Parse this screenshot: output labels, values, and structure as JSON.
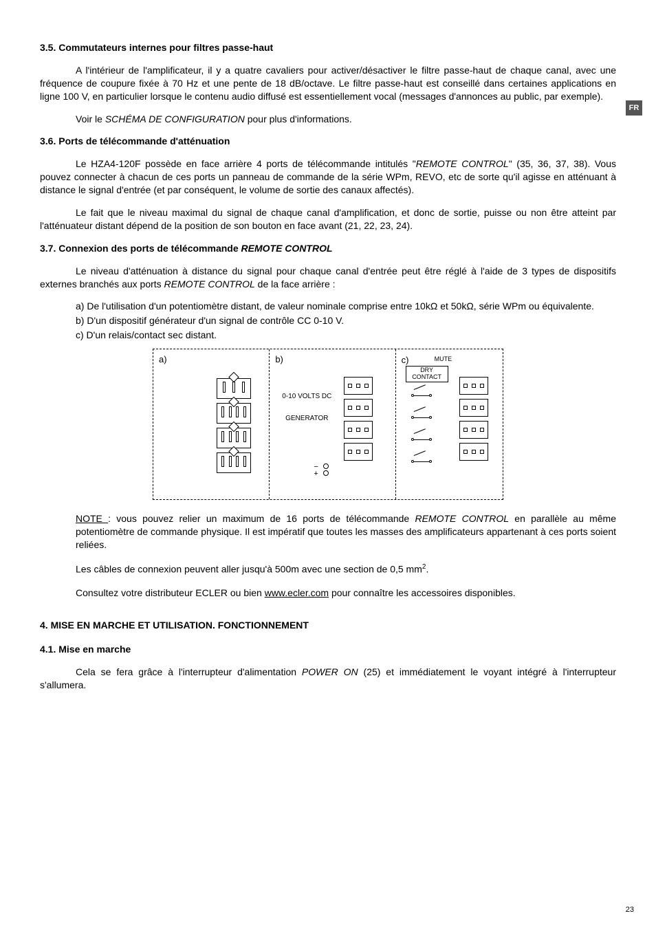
{
  "lang_badge": "FR",
  "s35": {
    "heading": "3.5. Commutateurs internes pour filtres passe-haut",
    "p1": "A l'intérieur de l'amplificateur, il y a quatre cavaliers pour activer/désactiver le filtre passe-haut de chaque canal, avec une fréquence de coupure fixée à 70 Hz et une pente de 18 dB/octave. Le filtre passe-haut est conseillé dans certaines applications en ligne 100 V, en particulier lorsque le contenu audio diffusé est essentiellement vocal (messages d'annonces au public, par exemple).",
    "p2_pre": "Voir le ",
    "p2_em": "SCHÉMA DE CONFIGURATION",
    "p2_post": " pour plus d'informations."
  },
  "s36": {
    "heading": "3.6. Ports de télécommande d'atténuation",
    "p1_a": "Le HZA4-120F possède en face arrière 4 ports de télécommande intitulés \"",
    "p1_em": "REMOTE CONTROL",
    "p1_b": "\" (35, 36, 37, 38). Vous pouvez connecter à chacun de ces ports un panneau de commande de la série WPm, REVO, etc de sorte qu'il agisse en atténuant à distance le signal d'entrée (et par conséquent, le volume de sortie des canaux affectés).",
    "p2": "Le fait que le niveau maximal du signal de chaque canal d'amplification, et donc de sortie, puisse ou non être atteint par l'atténuateur distant dépend de la position de son bouton en face avant (21, 22, 23, 24)."
  },
  "s37": {
    "heading_pre": "3.7. Connexion des ports de télécommande ",
    "heading_em": "REMOTE CONTROL",
    "p1_a": "Le niveau d'atténuation à distance du signal pour chaque canal d'entrée peut être réglé à l'aide de 3 types de dispositifs externes branchés aux ports ",
    "p1_em": "REMOTE CONTROL",
    "p1_b": " de la face arrière :",
    "li_a": "a) De l'utilisation d'un potentiomètre distant, de valeur nominale comprise entre 10kΩ et 50kΩ, série WPm ou équivalente.",
    "li_b": "b) D'un dispositif générateur d'un signal de contrôle CC 0-10 V.",
    "li_c": "c) D'un relais/contact sec distant.",
    "diagram": {
      "a_label": "a)",
      "b_label": "b)",
      "c_label": "c)",
      "gen_line1": "0-10 VOLTS DC",
      "gen_line2": "GENERATOR",
      "mute": "MUTE",
      "dry": "DRY CONTACT",
      "minus": "−",
      "plus": "+"
    },
    "note_u": "NOTE ",
    "note_a": ": vous pouvez relier un maximum de 16 ports de télécommande ",
    "note_em": "REMOTE CONTROL",
    "note_b": " en parallèle au même potentiomètre de commande physique. Il est impératif que toutes les masses des amplificateurs appartenant à ces ports soient reliées.",
    "cable_a": "Les câbles de connexion peuvent aller jusqu'à 500m avec une section de 0,5 mm",
    "cable_sup": "2",
    "cable_b": ".",
    "dist_a": "Consultez votre distributeur ECLER ou bien ",
    "dist_link": "www.ecler.com",
    "dist_b": " pour connaître les accessoires disponibles."
  },
  "s4": {
    "heading": "4. MISE EN MARCHE ET UTILISATION. FONCTIONNEMENT"
  },
  "s41": {
    "heading": "4.1. Mise en marche",
    "p1_a": "Cela se fera grâce à l'interrupteur d'alimentation ",
    "p1_em": "POWER ON",
    "p1_b": " (25) et immédiatement le voyant intégré à l'interrupteur s'allumera."
  },
  "page_number": "23"
}
